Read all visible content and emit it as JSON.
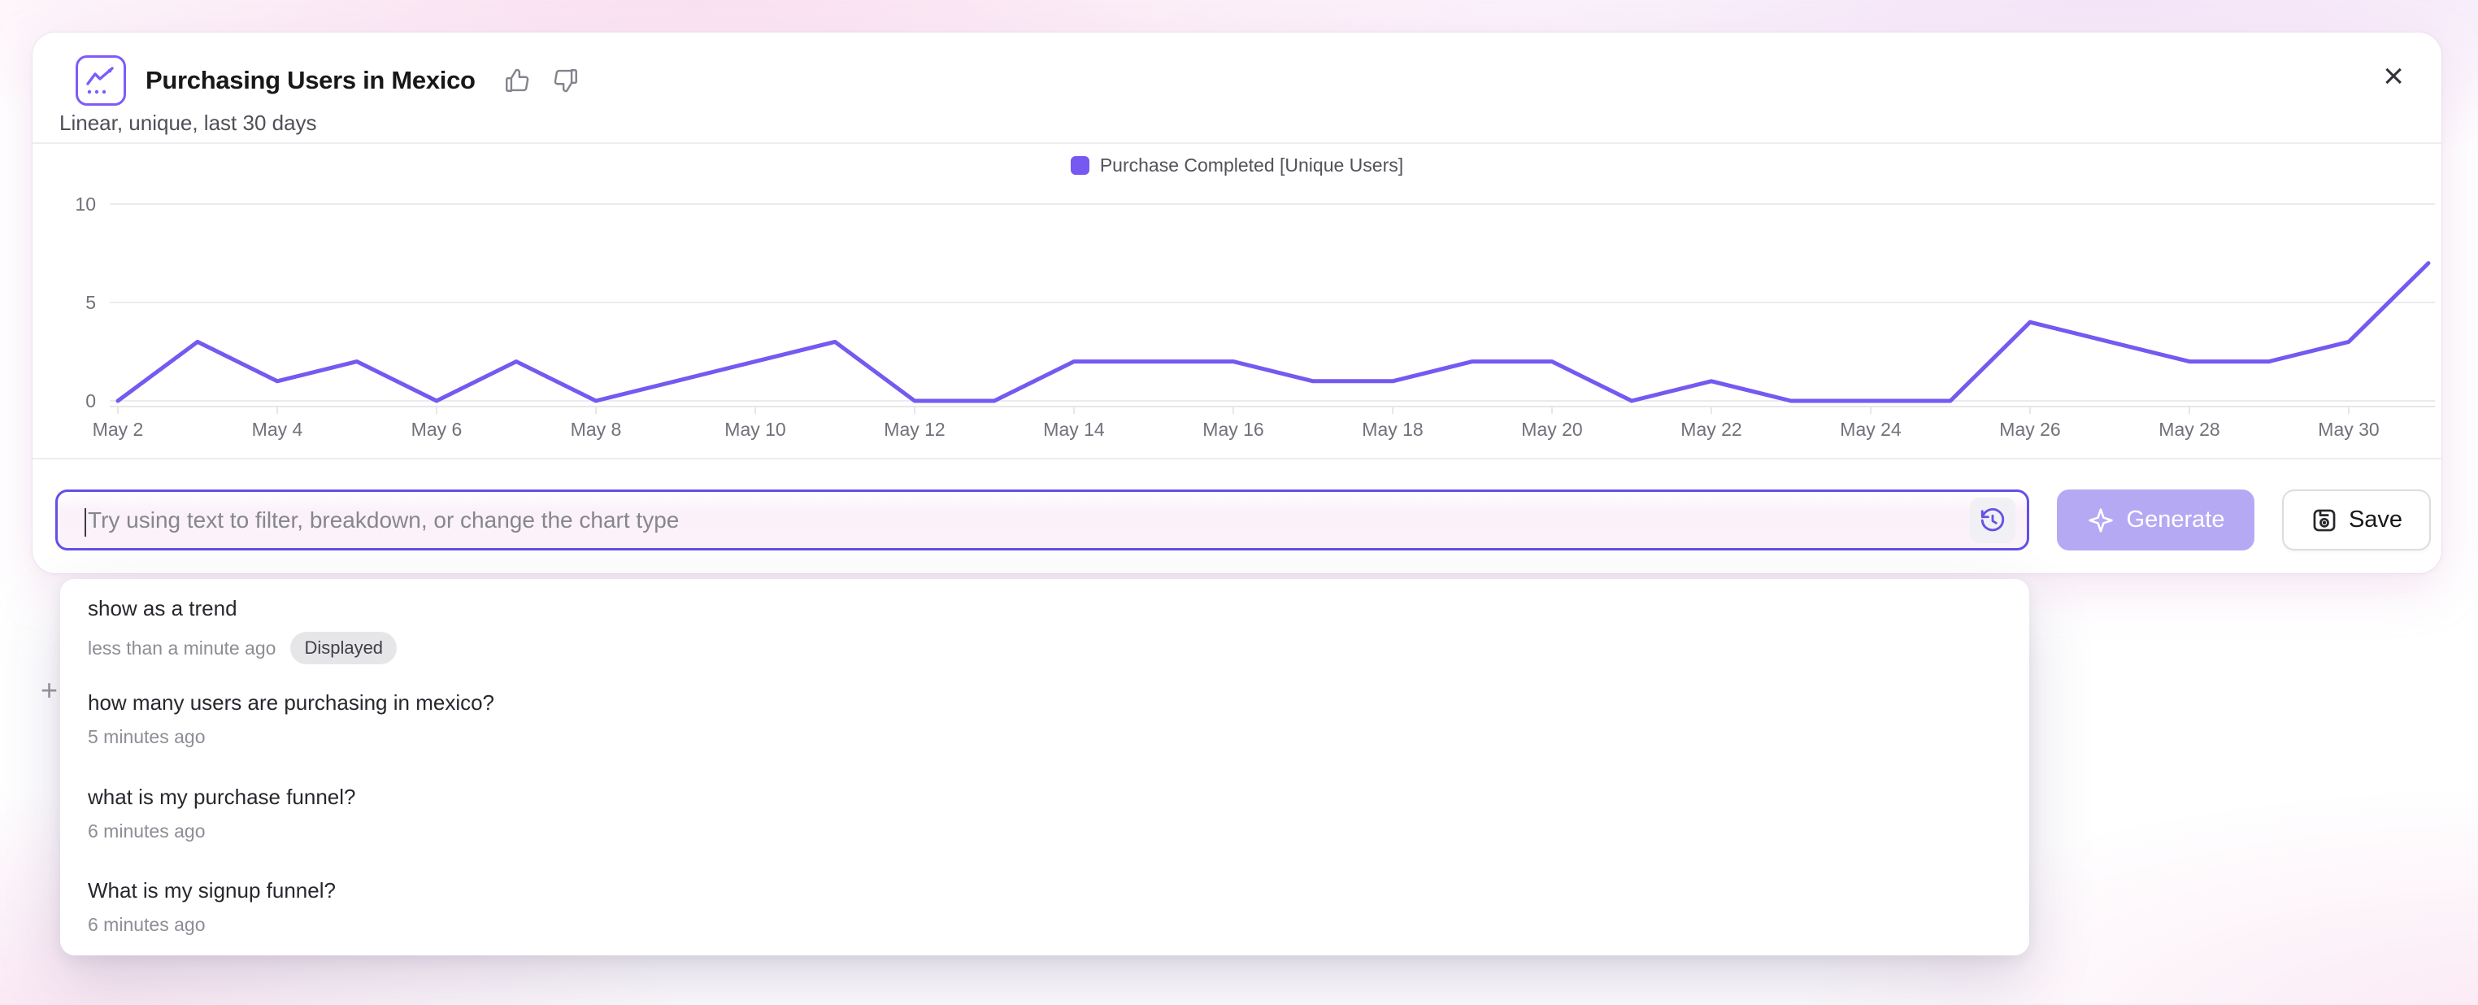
{
  "header": {
    "title": "Purchasing Users in Mexico",
    "subtitle": "Linear, unique, last 30 days"
  },
  "legend": {
    "label": "Purchase Completed [Unique Users]",
    "color": "#7559f0"
  },
  "chart_data": {
    "type": "line",
    "title": "Purchasing Users in Mexico",
    "x": [
      "May 2",
      "May 3",
      "May 4",
      "May 5",
      "May 6",
      "May 7",
      "May 8",
      "May 9",
      "May 10",
      "May 11",
      "May 12",
      "May 13",
      "May 14",
      "May 15",
      "May 16",
      "May 17",
      "May 18",
      "May 19",
      "May 20",
      "May 21",
      "May 22",
      "May 23",
      "May 24",
      "May 25",
      "May 26",
      "May 27",
      "May 28",
      "May 29",
      "May 30",
      "May 31"
    ],
    "series": [
      {
        "name": "Purchase Completed [Unique Users]",
        "values": [
          0,
          3,
          1,
          2,
          0,
          2,
          0,
          1,
          2,
          3,
          0,
          0,
          2,
          2,
          2,
          1,
          1,
          2,
          2,
          0,
          1,
          0,
          0,
          0,
          4,
          3,
          2,
          2,
          3,
          7
        ]
      }
    ],
    "xlabel": "",
    "ylabel": "",
    "ylim": [
      0,
      10
    ],
    "yticks": [
      0,
      5,
      10
    ],
    "x_label_step": 2,
    "grid": true,
    "legend_position": "top-center",
    "line_color": "#7559f0",
    "grid_color": "#ebebee",
    "axis_color": "#e7e7ea",
    "tick_label_color": "#71717a"
  },
  "prompt_bar": {
    "placeholder": "Try using text to filter, breakdown, or change the chart type",
    "generate_label": "Generate",
    "save_label": "Save"
  },
  "history_dropdown": {
    "items": [
      {
        "title": "show as a trend",
        "time": "less than a minute ago",
        "badge": "Displayed"
      },
      {
        "title": "how many users are purchasing in mexico?",
        "time": "5 minutes ago"
      },
      {
        "title": "what is my purchase funnel?",
        "time": "6 minutes ago"
      },
      {
        "title": "What is my signup funnel?",
        "time": "6 minutes ago"
      }
    ]
  },
  "icons": {
    "close_glyph": "×",
    "plus_glyph": "+"
  },
  "colors": {
    "accent_purple": "#7559f0",
    "input_border": "#6250e8",
    "generate_bg": "#b6a9f4"
  }
}
